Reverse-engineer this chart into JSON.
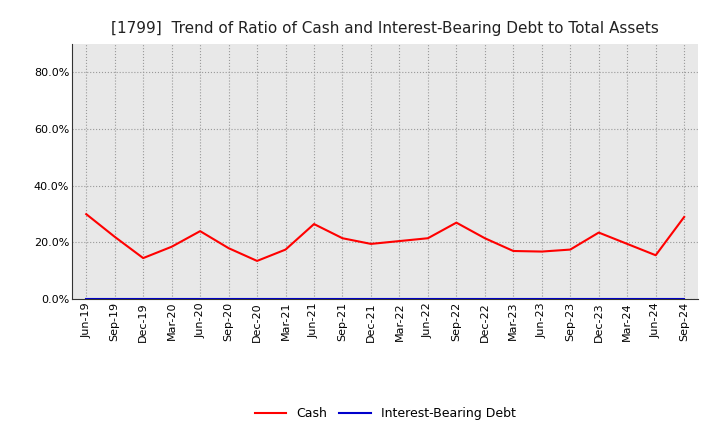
{
  "title": "[1799]  Trend of Ratio of Cash and Interest-Bearing Debt to Total Assets",
  "x_labels": [
    "Jun-19",
    "Sep-19",
    "Dec-19",
    "Mar-20",
    "Jun-20",
    "Sep-20",
    "Dec-20",
    "Mar-21",
    "Jun-21",
    "Sep-21",
    "Dec-21",
    "Mar-22",
    "Jun-22",
    "Sep-22",
    "Dec-22",
    "Mar-23",
    "Jun-23",
    "Sep-23",
    "Dec-23",
    "Mar-24",
    "Jun-24",
    "Sep-24"
  ],
  "cash": [
    0.3,
    0.22,
    0.145,
    0.185,
    0.24,
    0.18,
    0.135,
    0.175,
    0.265,
    0.215,
    0.195,
    0.205,
    0.215,
    0.27,
    0.215,
    0.17,
    0.168,
    0.175,
    0.235,
    0.195,
    0.155,
    0.29
  ],
  "interest_bearing_debt": [
    0.0,
    0.0,
    0.0,
    0.0,
    0.0,
    0.0,
    0.0,
    0.0,
    0.0,
    0.0,
    0.0,
    0.0,
    0.0,
    0.0,
    0.0,
    0.0,
    0.0,
    0.0,
    0.0,
    0.0,
    0.0,
    0.0
  ],
  "cash_color": "#ff0000",
  "debt_color": "#0000cc",
  "ylim": [
    0.0,
    0.9
  ],
  "yticks": [
    0.0,
    0.2,
    0.4,
    0.6,
    0.8
  ],
  "ytick_labels": [
    "0.0%",
    "20.0%",
    "40.0%",
    "60.0%",
    "80.0%"
  ],
  "grid_color": "#999999",
  "plot_bg_color": "#e8e8e8",
  "fig_bg_color": "#ffffff",
  "legend_cash": "Cash",
  "legend_debt": "Interest-Bearing Debt",
  "title_fontsize": 11,
  "axis_fontsize": 8,
  "legend_fontsize": 9
}
